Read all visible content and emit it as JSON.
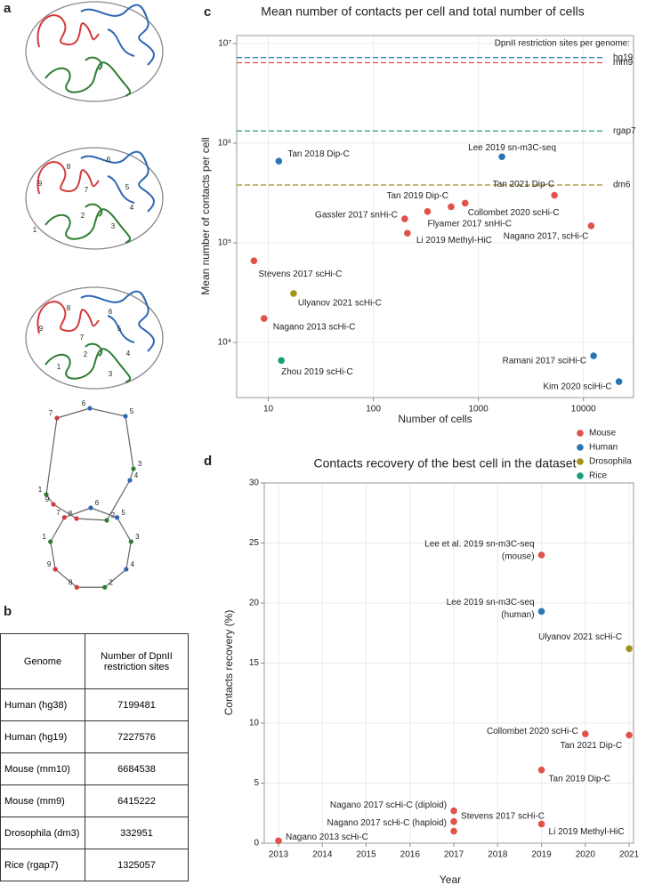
{
  "panels": [
    "a",
    "b",
    "c",
    "d"
  ],
  "panel_a": {
    "segment_labels": [
      "1",
      "2",
      "3",
      "4",
      "5",
      "6",
      "7",
      "8",
      "9"
    ]
  },
  "table": {
    "header": [
      "Genome",
      "Number of DpnII restriction sites"
    ],
    "rows": [
      [
        "Human (hg38)",
        7199481
      ],
      [
        "Human (hg19)",
        7227576
      ],
      [
        "Mouse (mm10)",
        6684538
      ],
      [
        "Mouse (mm9)",
        6415222
      ],
      [
        "Drosophila (dm3)",
        332951
      ],
      [
        "Rice (rgap7)",
        1325057
      ]
    ]
  },
  "chart_data": [
    {
      "type": "scatter",
      "title": "Mean number of contacts per cell and total number of cells",
      "xlabel": "Number of cells",
      "ylabel": "Mean number of contacts per cell",
      "xscale": "log",
      "yscale": "log",
      "xlim": [
        5,
        30000
      ],
      "ylim": [
        2800,
        12000000
      ],
      "xticks": [
        10,
        100,
        1000,
        10000
      ],
      "yticks": [
        {
          "value": 10000,
          "label": "10⁴"
        },
        {
          "value": 100000,
          "label": "10⁵"
        },
        {
          "value": 1000000,
          "label": "10⁶"
        },
        {
          "value": 10000000,
          "label": "10⁷"
        }
      ],
      "grid": true,
      "legend": "lower right",
      "reference_lines": {
        "title": "DpnII restriction sites per genome:",
        "lines": [
          {
            "label": "hg19",
            "value": 7227576,
            "color": "#2c7fb8"
          },
          {
            "label": "mm9",
            "value": 6415222,
            "color": "#e0524a"
          },
          {
            "label": "rgap7",
            "value": 1325057,
            "color": "#1a9e8a"
          },
          {
            "label": "dm6",
            "value": 380000,
            "color": "#a3921d"
          }
        ]
      },
      "series": [
        {
          "name": "Mouse",
          "color": "#e0524a",
          "labels": [
            "Stevens 2017 scHi-C",
            "Nagano 2013 scHi-C",
            "Gassler 2017 snHi-C",
            "Li 2019 Methyl-HiC",
            "Flyamer 2017 snHi-C",
            "Tan 2019 Dip-C",
            "Collombet 2020 scHi-C",
            "Tan 2021 Dip-C",
            "Nagano 2017, scHi-C"
          ],
          "x": [
            7.3,
            9.1,
            199,
            211,
            328,
            550,
            748,
            5300,
            11850
          ],
          "values": [
            66000,
            17400,
            174000,
            125000,
            206000,
            230000,
            250000,
            300000,
            148000
          ]
        },
        {
          "name": "Human",
          "color": "#2c75b5",
          "labels": [
            "Tan 2018 Dip-C",
            "Lee 2019 sn-m3C-seq",
            "Ramani 2017 sciHi-C",
            "Kim 2020 sciHi-C"
          ],
          "x": [
            12.6,
            1675,
            12500,
            21800
          ],
          "values": [
            660000,
            730000,
            7350,
            4050
          ]
        },
        {
          "name": "Drosophila",
          "color": "#a3921d",
          "labels": [
            "Ulyanov 2021 scHi-C"
          ],
          "x": [
            17.4
          ],
          "values": [
            31000
          ]
        },
        {
          "name": "Rice",
          "color": "#1a9e7a",
          "labels": [
            "Zhou 2019 scHi-C"
          ],
          "x": [
            13.3
          ],
          "values": [
            6600
          ]
        }
      ]
    },
    {
      "type": "scatter",
      "title": "Contacts recovery of the best cell in the dataset",
      "xlabel": "Year",
      "ylabel": "Contacts recovery (%)",
      "xlim": [
        2012.675,
        2021.1
      ],
      "ylim": [
        0,
        30
      ],
      "xticks": [
        2013,
        2014,
        2015,
        2016,
        2017,
        2018,
        2019,
        2020,
        2021
      ],
      "yticks": [
        0,
        5,
        10,
        15,
        20,
        25,
        30
      ],
      "grid": true,
      "series": [
        {
          "color": "#e0524a",
          "labels": [
            "Nagano 2013 scHi-C",
            "Nagano 2017 scHi-C (diploid)",
            "Stevens 2017 scHi-C",
            "Nagano 2017 scHi-C (haploid)",
            [
              "Lee et al. 2019 sn-m3C-seq",
              "(mouse)"
            ],
            "Collombet 2020 scHi-C",
            "Tan 2021 Dip-C",
            "Tan 2019 Dip-C",
            "Li 2019 Methyl-HiC"
          ],
          "x": [
            2013,
            2017,
            2017,
            2017,
            2019,
            2020,
            2021,
            2019,
            2019
          ],
          "values": [
            0.2,
            2.7,
            1.8,
            1.0,
            24.0,
            9.1,
            9.0,
            6.1,
            1.6
          ]
        },
        {
          "color": "#2c75b5",
          "labels": [
            [
              "Lee 2019 sn-m3C-seq",
              "(human)"
            ]
          ],
          "x": [
            2019
          ],
          "values": [
            19.3
          ]
        },
        {
          "color": "#a3921d",
          "labels": [
            "Ulyanov 2021 scHi-C"
          ],
          "x": [
            2021
          ],
          "values": [
            16.2
          ]
        }
      ]
    }
  ]
}
